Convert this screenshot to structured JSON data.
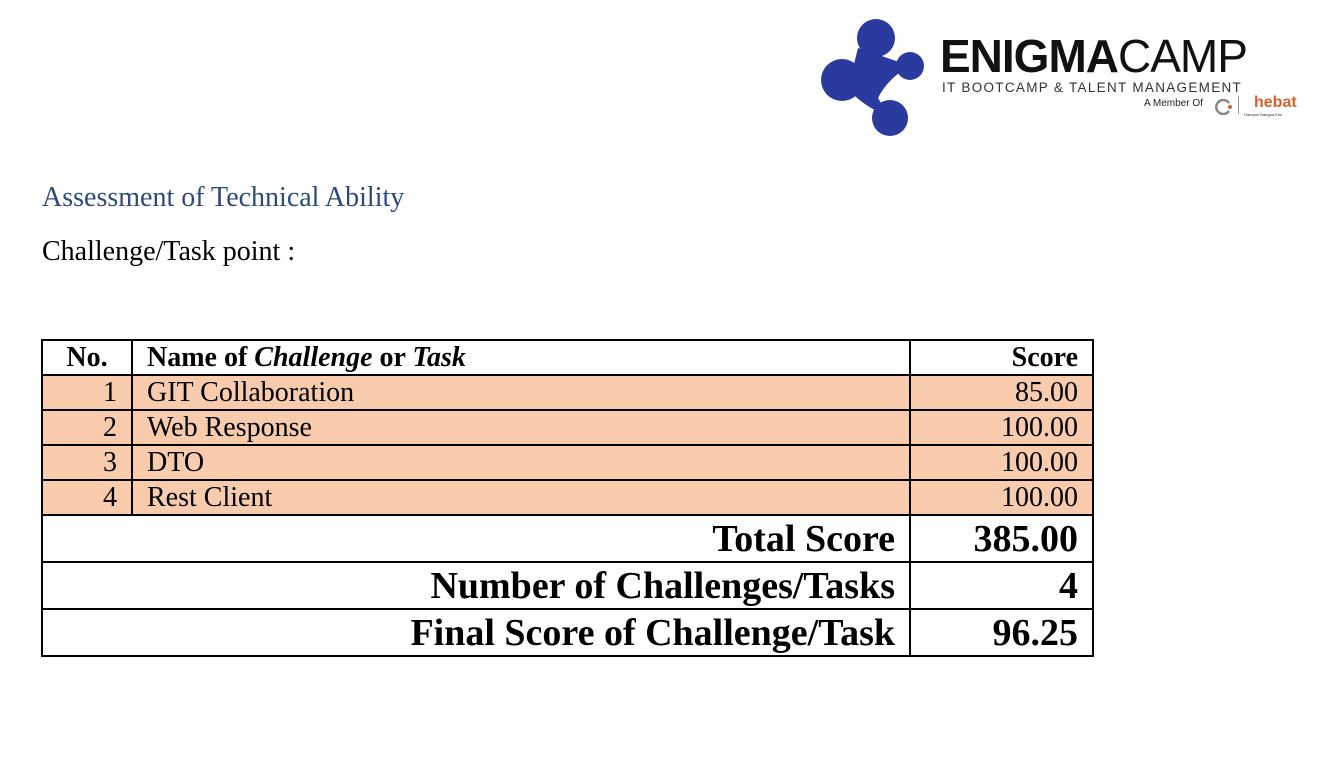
{
  "logo": {
    "brand_bold": "ENIGMA",
    "brand_light": "CAMP",
    "tagline": "IT BOOTCAMP & TALENT MANAGEMENT",
    "member_of": "A Member Of",
    "partner": "hebat",
    "partner_sub": "Hampan Bangsa Kita",
    "brand_color": "#2a3a9e",
    "partner_color": "#d9622b"
  },
  "heading": "Assessment of Technical Ability",
  "subheading": "Challenge/Task point :",
  "table": {
    "headers": {
      "no": "No.",
      "name_prefix": "Name of ",
      "name_challenge": "Challenge",
      "name_or": " or ",
      "name_task": "Task",
      "score": "Score"
    },
    "rows": [
      {
        "no": "1",
        "name": "GIT Collaboration",
        "score": "85.00"
      },
      {
        "no": "2",
        "name": "Web Response",
        "score": "100.00"
      },
      {
        "no": "3",
        "name": "DTO",
        "score": "100.00"
      },
      {
        "no": "4",
        "name": "Rest Client",
        "score": "100.00"
      }
    ],
    "row_color": "#f8cbad",
    "total_label": "Total Score",
    "total_value": "385.00",
    "count_label": "Number of Challenges/Tasks",
    "count_value": "4",
    "final_label": "Final Score of Challenge/Task",
    "final_value": "96.25"
  }
}
